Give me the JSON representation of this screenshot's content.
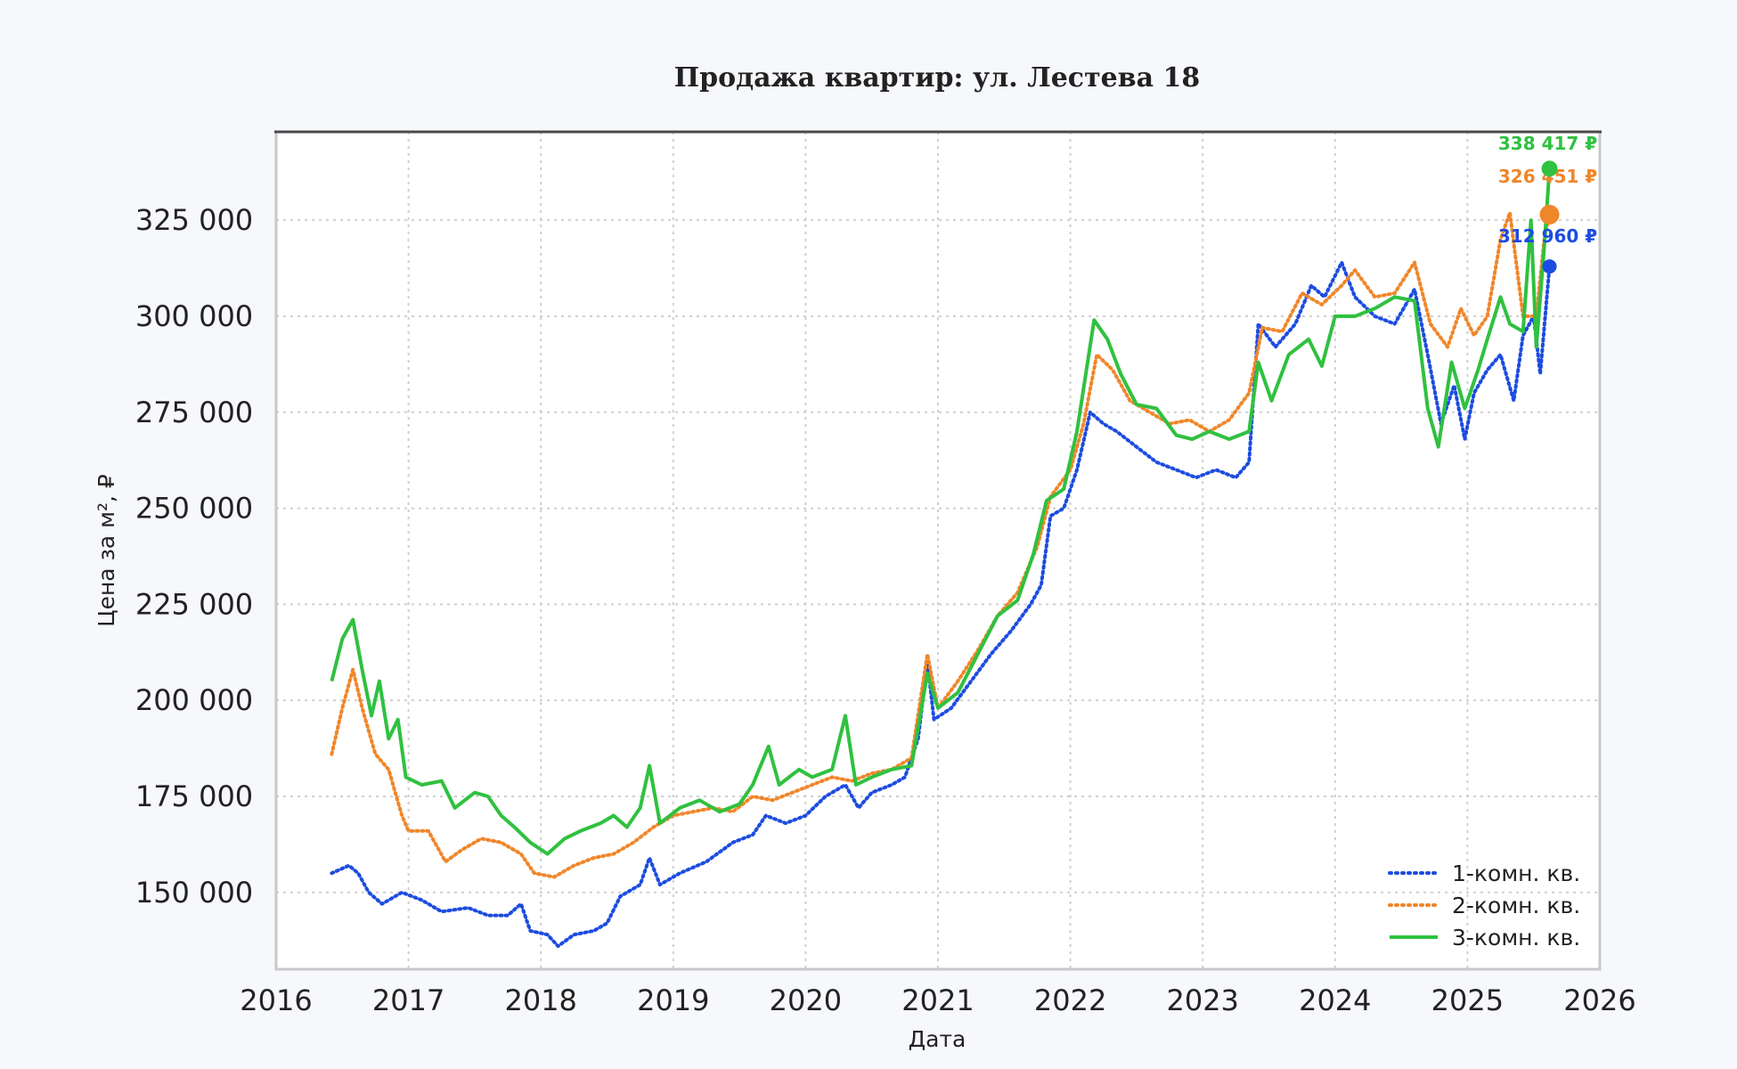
{
  "chart_data": {
    "type": "line",
    "title": "Продажа квартир: ул. Лестева 18",
    "xlabel": "Дата",
    "ylabel": "Цена за м², ₽",
    "xlim": [
      2016,
      2026
    ],
    "ylim": [
      130000,
      348000
    ],
    "x_ticks": [
      "2016",
      "2017",
      "2018",
      "2019",
      "2020",
      "2021",
      "2022",
      "2023",
      "2024",
      "2025",
      "2026"
    ],
    "y_ticks": [
      {
        "value": 150000,
        "label": "150 000"
      },
      {
        "value": 175000,
        "label": "175 000"
      },
      {
        "value": 200000,
        "label": "200 000"
      },
      {
        "value": 225000,
        "label": "225 000"
      },
      {
        "value": 250000,
        "label": "250 000"
      },
      {
        "value": 275000,
        "label": "275 000"
      },
      {
        "value": 300000,
        "label": "300 000"
      },
      {
        "value": 325000,
        "label": "325 000"
      }
    ],
    "grid": true,
    "legend_position": "bottom-right",
    "series": [
      {
        "name": "1-комн. кв.",
        "color": "#1c4ce0",
        "style": "dotted",
        "end_value": 312960,
        "end_label": "312 960 ₽",
        "points": [
          [
            2016.42,
            155000
          ],
          [
            2016.55,
            157000
          ],
          [
            2016.62,
            155000
          ],
          [
            2016.7,
            150000
          ],
          [
            2016.8,
            147000
          ],
          [
            2016.95,
            150000
          ],
          [
            2017.1,
            148000
          ],
          [
            2017.25,
            145000
          ],
          [
            2017.45,
            146000
          ],
          [
            2017.6,
            144000
          ],
          [
            2017.75,
            144000
          ],
          [
            2017.85,
            147000
          ],
          [
            2017.92,
            140000
          ],
          [
            2018.05,
            139000
          ],
          [
            2018.13,
            136000
          ],
          [
            2018.25,
            139000
          ],
          [
            2018.4,
            140000
          ],
          [
            2018.5,
            142000
          ],
          [
            2018.6,
            149000
          ],
          [
            2018.75,
            152000
          ],
          [
            2018.82,
            159000
          ],
          [
            2018.9,
            152000
          ],
          [
            2019.05,
            155000
          ],
          [
            2019.25,
            158000
          ],
          [
            2019.45,
            163000
          ],
          [
            2019.6,
            165000
          ],
          [
            2019.7,
            170000
          ],
          [
            2019.85,
            168000
          ],
          [
            2020.0,
            170000
          ],
          [
            2020.15,
            175000
          ],
          [
            2020.3,
            178000
          ],
          [
            2020.4,
            172000
          ],
          [
            2020.5,
            176000
          ],
          [
            2020.65,
            178000
          ],
          [
            2020.75,
            180000
          ],
          [
            2020.85,
            190000
          ],
          [
            2020.92,
            210000
          ],
          [
            2020.97,
            195000
          ],
          [
            2021.1,
            198000
          ],
          [
            2021.25,
            205000
          ],
          [
            2021.4,
            212000
          ],
          [
            2021.55,
            218000
          ],
          [
            2021.7,
            225000
          ],
          [
            2021.78,
            230000
          ],
          [
            2021.85,
            248000
          ],
          [
            2021.95,
            250000
          ],
          [
            2022.05,
            260000
          ],
          [
            2022.15,
            275000
          ],
          [
            2022.25,
            272000
          ],
          [
            2022.35,
            270000
          ],
          [
            2022.5,
            266000
          ],
          [
            2022.65,
            262000
          ],
          [
            2022.8,
            260000
          ],
          [
            2022.95,
            258000
          ],
          [
            2023.1,
            260000
          ],
          [
            2023.25,
            258000
          ],
          [
            2023.35,
            262000
          ],
          [
            2023.42,
            298000
          ],
          [
            2023.55,
            292000
          ],
          [
            2023.7,
            298000
          ],
          [
            2023.82,
            308000
          ],
          [
            2023.92,
            305000
          ],
          [
            2024.05,
            314000
          ],
          [
            2024.15,
            305000
          ],
          [
            2024.3,
            300000
          ],
          [
            2024.45,
            298000
          ],
          [
            2024.6,
            307000
          ],
          [
            2024.7,
            290000
          ],
          [
            2024.8,
            272000
          ],
          [
            2024.9,
            282000
          ],
          [
            2024.98,
            268000
          ],
          [
            2025.05,
            280000
          ],
          [
            2025.15,
            286000
          ],
          [
            2025.25,
            290000
          ],
          [
            2025.35,
            278000
          ],
          [
            2025.42,
            295000
          ],
          [
            2025.5,
            300000
          ],
          [
            2025.55,
            285000
          ],
          [
            2025.62,
            312960
          ]
        ]
      },
      {
        "name": "2-комн. кв.",
        "color": "#f0862a",
        "style": "dotted",
        "end_value": 326451,
        "end_label": "326 451 ₽",
        "points": [
          [
            2016.42,
            186000
          ],
          [
            2016.5,
            198000
          ],
          [
            2016.58,
            208000
          ],
          [
            2016.65,
            198000
          ],
          [
            2016.75,
            186000
          ],
          [
            2016.85,
            182000
          ],
          [
            2016.95,
            170000
          ],
          [
            2017.0,
            166000
          ],
          [
            2017.15,
            166000
          ],
          [
            2017.28,
            158000
          ],
          [
            2017.4,
            161000
          ],
          [
            2017.55,
            164000
          ],
          [
            2017.7,
            163000
          ],
          [
            2017.85,
            160000
          ],
          [
            2017.95,
            155000
          ],
          [
            2018.1,
            154000
          ],
          [
            2018.25,
            157000
          ],
          [
            2018.4,
            159000
          ],
          [
            2018.55,
            160000
          ],
          [
            2018.7,
            163000
          ],
          [
            2018.85,
            167000
          ],
          [
            2019.0,
            170000
          ],
          [
            2019.15,
            171000
          ],
          [
            2019.3,
            172000
          ],
          [
            2019.45,
            171000
          ],
          [
            2019.6,
            175000
          ],
          [
            2019.75,
            174000
          ],
          [
            2019.9,
            176000
          ],
          [
            2020.05,
            178000
          ],
          [
            2020.2,
            180000
          ],
          [
            2020.35,
            179000
          ],
          [
            2020.5,
            181000
          ],
          [
            2020.65,
            182000
          ],
          [
            2020.8,
            185000
          ],
          [
            2020.92,
            212000
          ],
          [
            2021.0,
            198000
          ],
          [
            2021.15,
            205000
          ],
          [
            2021.3,
            213000
          ],
          [
            2021.45,
            222000
          ],
          [
            2021.6,
            228000
          ],
          [
            2021.75,
            240000
          ],
          [
            2021.85,
            253000
          ],
          [
            2022.0,
            260000
          ],
          [
            2022.1,
            272000
          ],
          [
            2022.2,
            290000
          ],
          [
            2022.32,
            286000
          ],
          [
            2022.45,
            278000
          ],
          [
            2022.6,
            275000
          ],
          [
            2022.75,
            272000
          ],
          [
            2022.9,
            273000
          ],
          [
            2023.05,
            270000
          ],
          [
            2023.2,
            273000
          ],
          [
            2023.35,
            280000
          ],
          [
            2023.45,
            297000
          ],
          [
            2023.6,
            296000
          ],
          [
            2023.75,
            306000
          ],
          [
            2023.9,
            303000
          ],
          [
            2024.05,
            308000
          ],
          [
            2024.15,
            312000
          ],
          [
            2024.3,
            305000
          ],
          [
            2024.45,
            306000
          ],
          [
            2024.6,
            314000
          ],
          [
            2024.72,
            298000
          ],
          [
            2024.85,
            292000
          ],
          [
            2024.95,
            302000
          ],
          [
            2025.05,
            295000
          ],
          [
            2025.15,
            300000
          ],
          [
            2025.25,
            320000
          ],
          [
            2025.32,
            327000
          ],
          [
            2025.42,
            300000
          ],
          [
            2025.52,
            300000
          ],
          [
            2025.58,
            320000
          ],
          [
            2025.62,
            326451
          ]
        ]
      },
      {
        "name": "3-комн. кв.",
        "color": "#2fc13f",
        "style": "solid",
        "end_value": 338417,
        "end_label": "338 417 ₽",
        "points": [
          [
            2016.42,
            205000
          ],
          [
            2016.5,
            216000
          ],
          [
            2016.58,
            221000
          ],
          [
            2016.65,
            208000
          ],
          [
            2016.72,
            196000
          ],
          [
            2016.78,
            205000
          ],
          [
            2016.85,
            190000
          ],
          [
            2016.92,
            195000
          ],
          [
            2016.98,
            180000
          ],
          [
            2017.1,
            178000
          ],
          [
            2017.25,
            179000
          ],
          [
            2017.35,
            172000
          ],
          [
            2017.5,
            176000
          ],
          [
            2017.6,
            175000
          ],
          [
            2017.7,
            170000
          ],
          [
            2017.8,
            167000
          ],
          [
            2017.92,
            163000
          ],
          [
            2018.05,
            160000
          ],
          [
            2018.18,
            164000
          ],
          [
            2018.3,
            166000
          ],
          [
            2018.45,
            168000
          ],
          [
            2018.55,
            170000
          ],
          [
            2018.65,
            167000
          ],
          [
            2018.75,
            172000
          ],
          [
            2018.82,
            183000
          ],
          [
            2018.9,
            168000
          ],
          [
            2019.05,
            172000
          ],
          [
            2019.2,
            174000
          ],
          [
            2019.35,
            171000
          ],
          [
            2019.5,
            173000
          ],
          [
            2019.6,
            178000
          ],
          [
            2019.72,
            188000
          ],
          [
            2019.8,
            178000
          ],
          [
            2019.95,
            182000
          ],
          [
            2020.05,
            180000
          ],
          [
            2020.2,
            182000
          ],
          [
            2020.3,
            196000
          ],
          [
            2020.38,
            178000
          ],
          [
            2020.5,
            180000
          ],
          [
            2020.65,
            182000
          ],
          [
            2020.8,
            183000
          ],
          [
            2020.92,
            207000
          ],
          [
            2021.0,
            198000
          ],
          [
            2021.15,
            202000
          ],
          [
            2021.3,
            212000
          ],
          [
            2021.45,
            222000
          ],
          [
            2021.6,
            226000
          ],
          [
            2021.72,
            238000
          ],
          [
            2021.82,
            252000
          ],
          [
            2021.95,
            255000
          ],
          [
            2022.05,
            270000
          ],
          [
            2022.18,
            299000
          ],
          [
            2022.28,
            294000
          ],
          [
            2022.38,
            285000
          ],
          [
            2022.5,
            277000
          ],
          [
            2022.65,
            276000
          ],
          [
            2022.8,
            269000
          ],
          [
            2022.92,
            268000
          ],
          [
            2023.05,
            270000
          ],
          [
            2023.2,
            268000
          ],
          [
            2023.35,
            270000
          ],
          [
            2023.42,
            288000
          ],
          [
            2023.52,
            278000
          ],
          [
            2023.65,
            290000
          ],
          [
            2023.8,
            294000
          ],
          [
            2023.9,
            287000
          ],
          [
            2024.0,
            300000
          ],
          [
            2024.15,
            300000
          ],
          [
            2024.3,
            302000
          ],
          [
            2024.45,
            305000
          ],
          [
            2024.6,
            304000
          ],
          [
            2024.7,
            276000
          ],
          [
            2024.78,
            266000
          ],
          [
            2024.88,
            288000
          ],
          [
            2024.98,
            276000
          ],
          [
            2025.08,
            286000
          ],
          [
            2025.15,
            294000
          ],
          [
            2025.25,
            305000
          ],
          [
            2025.32,
            298000
          ],
          [
            2025.42,
            296000
          ],
          [
            2025.48,
            325000
          ],
          [
            2025.52,
            292000
          ],
          [
            2025.58,
            318000
          ],
          [
            2025.62,
            338417
          ]
        ]
      }
    ]
  }
}
